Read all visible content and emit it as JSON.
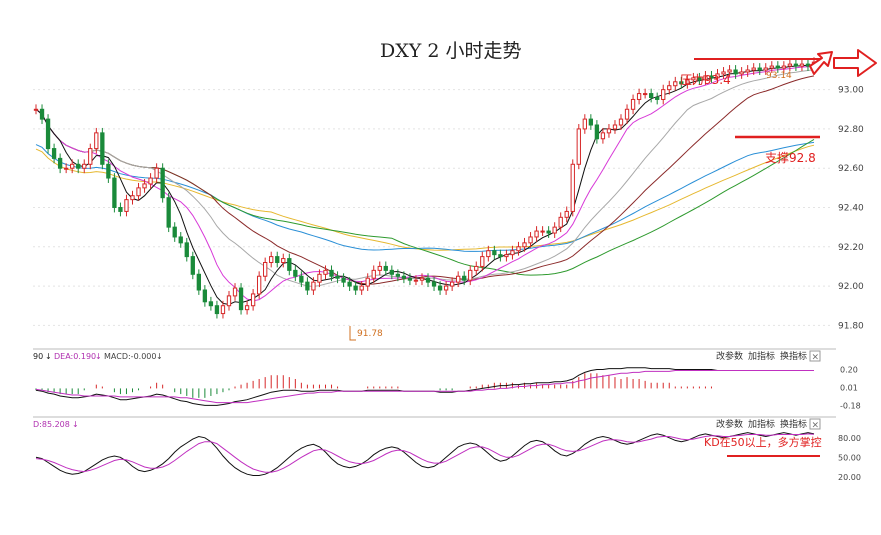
{
  "title": "DXY 2 小时走势",
  "colors": {
    "up": "#d62728",
    "down": "#1a8a3a",
    "annotation": "#e02020",
    "ma5": "#111111",
    "ma10": "#d83ad8",
    "ma20": "#a8a8a8",
    "ma30": "#8b2a2a",
    "ma60": "#2e9a2e",
    "ma120": "#2a8fd6",
    "ma250": "#e6b830",
    "grid": "#e4e4e4"
  },
  "annotations": {
    "resistance": "压力93.4",
    "support": "支撑92.8",
    "kd_note": "KD在50以上，多方掌控",
    "high_label": "93.14",
    "low_label": "91.78"
  },
  "macd_panel": {
    "header_prefix": "90",
    "dea": "DEA:0.190",
    "macd": "MACD:-0.000",
    "buttons": [
      "改参数",
      "加指标",
      "换指标"
    ],
    "close": "×",
    "arrow": "↓"
  },
  "kd_panel": {
    "d_label": "D:85.208",
    "buttons": [
      "改参数",
      "加指标",
      "换指标"
    ],
    "close": "×",
    "arrow": "↓"
  },
  "chart_data": [
    {
      "type": "candlestick",
      "title": "DXY 2 小时走势",
      "ylim": [
        91.7,
        93.1
      ],
      "yticks": [
        "93.00",
        "92.80",
        "92.60",
        "92.40",
        "92.20",
        "92.00",
        "91.80"
      ],
      "grid": true,
      "x": [
        1,
        2,
        3,
        4,
        5,
        6,
        7,
        8,
        9,
        10,
        11,
        12,
        13,
        14,
        15,
        16,
        17,
        18,
        19,
        20,
        21,
        22,
        23,
        24,
        25,
        26,
        27,
        28,
        29,
        30,
        31,
        32,
        33,
        34,
        35,
        36,
        37,
        38,
        39,
        40,
        41,
        42,
        43,
        44,
        45,
        46,
        47,
        48,
        49,
        50,
        51,
        52,
        53,
        54,
        55,
        56,
        57,
        58,
        59,
        60,
        61,
        62,
        63,
        64,
        65,
        66,
        67,
        68,
        69,
        70,
        71,
        72,
        73,
        74,
        75,
        76,
        77,
        78,
        79,
        80,
        81,
        82,
        83,
        84,
        85,
        86,
        87,
        88,
        89,
        90,
        91,
        92,
        93,
        94,
        95,
        96,
        97,
        98,
        99,
        100,
        101,
        102,
        103,
        104,
        105,
        106,
        107,
        108,
        109,
        110,
        111,
        112,
        113,
        114,
        115,
        116,
        117,
        118,
        119,
        120,
        121,
        122,
        123,
        124,
        125,
        126,
        127,
        128,
        129,
        130
      ],
      "series": [
        {
          "name": "open",
          "values": [
            92.9,
            92.9,
            92.85,
            92.7,
            92.65,
            92.6,
            92.6,
            92.62,
            92.6,
            92.62,
            92.7,
            92.78,
            92.62,
            92.55,
            92.4,
            92.38,
            92.44,
            92.46,
            92.5,
            92.52,
            92.55,
            92.6,
            92.45,
            92.3,
            92.25,
            92.22,
            92.15,
            92.06,
            91.98,
            91.92,
            91.9,
            91.86,
            91.9,
            91.95,
            91.99,
            91.88,
            91.9,
            91.96,
            92.05,
            92.12,
            92.15,
            92.12,
            92.14,
            92.08,
            92.05,
            92.02,
            91.98,
            92.02,
            92.06,
            92.08,
            92.05,
            92.04,
            92.02,
            92.0,
            91.98,
            92.0,
            92.04,
            92.08,
            92.1,
            92.08,
            92.06,
            92.05,
            92.04,
            92.03,
            92.03,
            92.04,
            92.02,
            92.0,
            91.98,
            92.0,
            92.02,
            92.05,
            92.03,
            92.08,
            92.1,
            92.15,
            92.18,
            92.16,
            92.15,
            92.16,
            92.18,
            92.2,
            92.22,
            92.25,
            92.28,
            92.28,
            92.27,
            92.3,
            92.35,
            92.38,
            92.62,
            92.8,
            92.85,
            92.82,
            92.75,
            92.78,
            92.8,
            92.82,
            92.85,
            92.9,
            92.95,
            92.98,
            92.98,
            92.96,
            92.95,
            93.0,
            93.02,
            93.04,
            93.03,
            93.05,
            93.06,
            93.05,
            93.07,
            93.06,
            93.08,
            93.09,
            93.1,
            93.08,
            93.09,
            93.1,
            93.11,
            93.1,
            93.11,
            93.12,
            93.11,
            93.12,
            93.13,
            93.12,
            93.13,
            93.12
          ]
        },
        {
          "name": "close",
          "values": [
            92.9,
            92.85,
            92.7,
            92.65,
            92.6,
            92.6,
            92.62,
            92.6,
            92.62,
            92.7,
            92.78,
            92.62,
            92.55,
            92.4,
            92.38,
            92.44,
            92.46,
            92.5,
            92.52,
            92.55,
            92.6,
            92.45,
            92.3,
            92.25,
            92.22,
            92.15,
            92.06,
            91.98,
            91.92,
            91.9,
            91.86,
            91.9,
            91.95,
            91.99,
            91.88,
            91.9,
            91.96,
            92.05,
            92.12,
            92.15,
            92.12,
            92.14,
            92.08,
            92.05,
            92.02,
            91.98,
            92.02,
            92.06,
            92.08,
            92.05,
            92.04,
            92.02,
            92.0,
            91.98,
            92.0,
            92.04,
            92.08,
            92.1,
            92.08,
            92.06,
            92.05,
            92.04,
            92.03,
            92.03,
            92.04,
            92.02,
            92.0,
            91.98,
            92.0,
            92.02,
            92.05,
            92.03,
            92.08,
            92.1,
            92.15,
            92.18,
            92.16,
            92.15,
            92.16,
            92.18,
            92.2,
            92.22,
            92.25,
            92.28,
            92.28,
            92.27,
            92.3,
            92.35,
            92.38,
            92.62,
            92.8,
            92.85,
            92.82,
            92.75,
            92.78,
            92.8,
            92.82,
            92.85,
            92.9,
            92.95,
            92.98,
            92.98,
            92.96,
            92.95,
            93.0,
            93.02,
            93.04,
            93.03,
            93.05,
            93.06,
            93.05,
            93.07,
            93.06,
            93.08,
            93.09,
            93.1,
            93.08,
            93.09,
            93.1,
            93.11,
            93.1,
            93.11,
            93.12,
            93.11,
            93.12,
            93.13,
            93.12,
            93.13,
            93.12,
            93.14
          ]
        }
      ]
    },
    {
      "type": "line",
      "title": "MACD",
      "ylim": [
        -0.25,
        0.28
      ],
      "yticks": [
        "0.20",
        "0.01",
        "-0.18"
      ],
      "series": [
        {
          "name": "DIF",
          "values": [
            -0.02,
            -0.03,
            -0.05,
            -0.06,
            -0.08,
            -0.09,
            -0.1,
            -0.1,
            -0.09,
            -0.08,
            -0.06,
            -0.07,
            -0.08,
            -0.1,
            -0.12,
            -0.12,
            -0.11,
            -0.1,
            -0.09,
            -0.08,
            -0.06,
            -0.07,
            -0.09,
            -0.11,
            -0.13,
            -0.14,
            -0.16,
            -0.17,
            -0.18,
            -0.18,
            -0.18,
            -0.17,
            -0.16,
            -0.14,
            -0.13,
            -0.12,
            -0.1,
            -0.08,
            -0.06,
            -0.04,
            -0.03,
            -0.02,
            -0.02,
            -0.02,
            -0.03,
            -0.03,
            -0.03,
            -0.02,
            -0.02,
            -0.02,
            -0.02,
            -0.03,
            -0.03,
            -0.03,
            -0.03,
            -0.02,
            -0.02,
            -0.02,
            -0.02,
            -0.02,
            -0.02,
            -0.03,
            -0.03,
            -0.03,
            -0.03,
            -0.03,
            -0.03,
            -0.04,
            -0.04,
            -0.04,
            -0.03,
            -0.03,
            -0.02,
            -0.01,
            0.0,
            0.01,
            0.02,
            0.03,
            0.03,
            0.04,
            0.04,
            0.05,
            0.05,
            0.06,
            0.06,
            0.06,
            0.07,
            0.07,
            0.08,
            0.1,
            0.14,
            0.17,
            0.19,
            0.2,
            0.2,
            0.21,
            0.21,
            0.21,
            0.22,
            0.22,
            0.22,
            0.22,
            0.21,
            0.21,
            0.21,
            0.21,
            0.2,
            0.2,
            0.2,
            0.2,
            0.2,
            0.2,
            0.2,
            0.19,
            0.19,
            0.19,
            0.19,
            0.19,
            0.19,
            0.19,
            0.19,
            0.19,
            0.19,
            0.19,
            0.19,
            0.19,
            0.19,
            0.19,
            0.19,
            0.19
          ]
        },
        {
          "name": "DEA",
          "values": [
            -0.01,
            -0.02,
            -0.03,
            -0.04,
            -0.05,
            -0.06,
            -0.07,
            -0.07,
            -0.08,
            -0.08,
            -0.08,
            -0.08,
            -0.08,
            -0.08,
            -0.09,
            -0.09,
            -0.09,
            -0.09,
            -0.09,
            -0.09,
            -0.09,
            -0.09,
            -0.09,
            -0.09,
            -0.1,
            -0.1,
            -0.11,
            -0.12,
            -0.13,
            -0.14,
            -0.15,
            -0.15,
            -0.15,
            -0.15,
            -0.15,
            -0.15,
            -0.14,
            -0.13,
            -0.12,
            -0.11,
            -0.1,
            -0.09,
            -0.08,
            -0.07,
            -0.06,
            -0.05,
            -0.05,
            -0.04,
            -0.04,
            -0.04,
            -0.03,
            -0.03,
            -0.03,
            -0.03,
            -0.03,
            -0.03,
            -0.03,
            -0.03,
            -0.03,
            -0.03,
            -0.03,
            -0.03,
            -0.03,
            -0.03,
            -0.03,
            -0.03,
            -0.03,
            -0.03,
            -0.03,
            -0.03,
            -0.03,
            -0.03,
            -0.03,
            -0.02,
            -0.02,
            -0.01,
            -0.01,
            0.0,
            0.0,
            0.01,
            0.02,
            0.02,
            0.03,
            0.03,
            0.04,
            0.04,
            0.05,
            0.05,
            0.06,
            0.06,
            0.08,
            0.09,
            0.11,
            0.12,
            0.13,
            0.14,
            0.15,
            0.16,
            0.16,
            0.17,
            0.17,
            0.18,
            0.18,
            0.18,
            0.18,
            0.18,
            0.19,
            0.19,
            0.19,
            0.19,
            0.19,
            0.19,
            0.19,
            0.19,
            0.19,
            0.19,
            0.19,
            0.19,
            0.19,
            0.19,
            0.19,
            0.19,
            0.19,
            0.19,
            0.19,
            0.19,
            0.19,
            0.19,
            0.19,
            0.19
          ]
        }
      ]
    },
    {
      "type": "line",
      "title": "KD",
      "ylim": [
        12,
        95
      ],
      "yticks": [
        "80.00",
        "50.00",
        "20.00"
      ],
      "series": [
        {
          "name": "K",
          "values": [
            50,
            48,
            42,
            36,
            30,
            26,
            24,
            25,
            28,
            34,
            40,
            46,
            50,
            52,
            50,
            44,
            36,
            30,
            28,
            30,
            34,
            40,
            48,
            58,
            66,
            72,
            78,
            82,
            80,
            74,
            64,
            52,
            42,
            34,
            28,
            24,
            22,
            22,
            24,
            28,
            34,
            42,
            50,
            58,
            64,
            68,
            70,
            66,
            58,
            48,
            40,
            36,
            34,
            36,
            40,
            46,
            54,
            60,
            64,
            66,
            64,
            58,
            50,
            42,
            36,
            34,
            36,
            42,
            50,
            58,
            66,
            70,
            72,
            70,
            64,
            56,
            48,
            44,
            46,
            52,
            60,
            68,
            74,
            76,
            74,
            68,
            60,
            54,
            52,
            56,
            62,
            70,
            76,
            80,
            82,
            80,
            76,
            72,
            70,
            72,
            76,
            80,
            84,
            86,
            84,
            80,
            76,
            74,
            76,
            80,
            84,
            86,
            84,
            82,
            80,
            82,
            84,
            86,
            88,
            86,
            84,
            82,
            84,
            86,
            88,
            86,
            84,
            86,
            88,
            86
          ]
        },
        {
          "name": "D",
          "values": [
            48,
            47,
            45,
            42,
            38,
            34,
            31,
            29,
            28,
            30,
            33,
            37,
            41,
            45,
            47,
            46,
            43,
            39,
            35,
            33,
            33,
            35,
            39,
            45,
            52,
            59,
            65,
            71,
            74,
            74,
            71,
            64,
            57,
            50,
            43,
            37,
            32,
            29,
            27,
            27,
            29,
            33,
            38,
            44,
            50,
            55,
            60,
            62,
            61,
            57,
            52,
            47,
            43,
            41,
            40,
            42,
            45,
            50,
            55,
            59,
            61,
            60,
            57,
            52,
            47,
            43,
            41,
            41,
            44,
            49,
            54,
            59,
            64,
            66,
            66,
            63,
            58,
            53,
            50,
            50,
            53,
            58,
            63,
            68,
            70,
            70,
            67,
            63,
            60,
            59,
            60,
            63,
            67,
            71,
            75,
            77,
            77,
            76,
            74,
            73,
            74,
            76,
            78,
            81,
            82,
            82,
            80,
            78,
            77,
            78,
            80,
            82,
            83,
            83,
            82,
            82,
            83,
            84,
            85,
            85,
            85,
            84,
            84,
            85,
            85,
            85,
            85,
            85,
            86,
            85.208
          ]
        }
      ]
    }
  ]
}
